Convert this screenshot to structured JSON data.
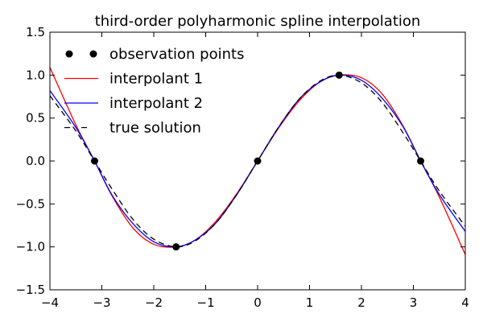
{
  "chart_data": {
    "type": "line",
    "title": "third-order polyharmonic spline interpolation",
    "xlabel": "",
    "ylabel": "",
    "xlim": [
      -4,
      4
    ],
    "ylim": [
      -1.5,
      1.5
    ],
    "xticks": [
      -4,
      -3,
      -2,
      -1,
      0,
      1,
      2,
      3,
      4
    ],
    "xtick_labels": [
      "−4",
      "−3",
      "−2",
      "−1",
      "0",
      "1",
      "2",
      "3",
      "4"
    ],
    "yticks": [
      1.5,
      1.0,
      0.5,
      0.0,
      -0.5,
      -1.0,
      -1.5
    ],
    "ytick_labels": [
      "1.5",
      "1.0",
      "0.5",
      "0.0",
      "−0.5",
      "−1.0",
      "−1.5"
    ],
    "grid": false,
    "legend_position": "top-left",
    "series": [
      {
        "name": "observation points",
        "style": "markers",
        "color": "#000000",
        "x": [
          -3.14,
          -1.57,
          0.0,
          1.57,
          3.14
        ],
        "y": [
          0.0,
          -1.0,
          0.0,
          1.0,
          0.0
        ]
      },
      {
        "name": "interpolant 1",
        "style": "solid",
        "color": "#ff0000",
        "x": [
          -4.0,
          -3.5,
          -3.14,
          -2.8,
          -2.4,
          -2.0,
          -1.57,
          -1.2,
          -0.8,
          -0.4,
          0.0,
          0.4,
          0.8,
          1.2,
          1.57,
          2.0,
          2.4,
          2.8,
          3.14,
          3.5,
          4.0
        ],
        "y": [
          1.09,
          0.42,
          0.0,
          -0.41,
          -0.78,
          -0.97,
          -1.0,
          -0.92,
          -0.7,
          -0.38,
          0.0,
          0.38,
          0.7,
          0.92,
          1.0,
          0.97,
          0.78,
          0.41,
          0.0,
          -0.42,
          -1.09
        ]
      },
      {
        "name": "interpolant 2",
        "style": "solid",
        "color": "#0000ff",
        "x": [
          -4.0,
          -3.5,
          -3.14,
          -2.8,
          -2.4,
          -2.0,
          -1.57,
          -1.2,
          -0.8,
          -0.4,
          0.0,
          0.4,
          0.8,
          1.2,
          1.57,
          2.0,
          2.4,
          2.8,
          3.14,
          3.5,
          4.0
        ],
        "y": [
          0.82,
          0.39,
          0.0,
          -0.4,
          -0.73,
          -0.94,
          -1.0,
          -0.92,
          -0.72,
          -0.39,
          0.0,
          0.39,
          0.72,
          0.92,
          1.0,
          0.94,
          0.73,
          0.4,
          0.0,
          -0.39,
          -0.82
        ]
      },
      {
        "name": "true solution",
        "style": "dashed",
        "color": "#000000",
        "x": [
          -4.0,
          -3.5,
          -3.14,
          -2.8,
          -2.4,
          -2.0,
          -1.57,
          -1.2,
          -0.8,
          -0.4,
          0.0,
          0.4,
          0.8,
          1.2,
          1.57,
          2.0,
          2.4,
          2.8,
          3.14,
          3.5,
          4.0
        ],
        "y": [
          0.76,
          0.35,
          0.0,
          -0.33,
          -0.68,
          -0.91,
          -1.0,
          -0.93,
          -0.72,
          -0.39,
          0.0,
          0.39,
          0.72,
          0.93,
          1.0,
          0.91,
          0.68,
          0.33,
          0.0,
          -0.35,
          -0.76
        ]
      }
    ]
  }
}
